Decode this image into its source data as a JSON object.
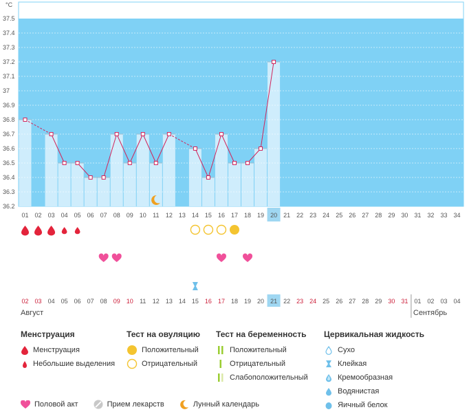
{
  "chart_data": {
    "type": "line",
    "ylabel": "°C",
    "ylim": [
      36.2,
      37.5
    ],
    "y_ticks": [
      "36.2",
      "36.3",
      "36.4",
      "36.5",
      "36.6",
      "36.7",
      "36.8",
      "36.9",
      "37",
      "37.1",
      "37.2",
      "37.3",
      "37.4",
      "37.5"
    ],
    "x_labels_top": [
      "01",
      "02",
      "03",
      "04",
      "05",
      "06",
      "07",
      "08",
      "09",
      "10",
      "11",
      "12",
      "13",
      "14",
      "15",
      "16",
      "17",
      "18",
      "19",
      "20",
      "21",
      "22",
      "23",
      "24",
      "25",
      "26",
      "27",
      "28",
      "29",
      "30",
      "31",
      "32",
      "33",
      "34"
    ],
    "highlight_day": "20",
    "temperatures": [
      36.8,
      null,
      36.7,
      36.5,
      36.5,
      36.4,
      36.4,
      36.7,
      36.5,
      36.7,
      36.5,
      36.7,
      null,
      36.6,
      36.4,
      36.7,
      36.5,
      36.5,
      36.6,
      37.2
    ],
    "moon_day": "11",
    "menstruation_large_days": [
      "01",
      "02",
      "03"
    ],
    "menstruation_small_days": [
      "04",
      "05"
    ],
    "ovulation_negative_days": [
      "14",
      "15",
      "16"
    ],
    "ovulation_positive_days": [
      "17"
    ],
    "intercourse_days": [
      "07",
      "08",
      "16",
      "18"
    ],
    "cervical_sticky_days": [
      "14"
    ],
    "dates_bottom": [
      {
        "t": "02",
        "red": true
      },
      {
        "t": "03",
        "red": true
      },
      {
        "t": "04",
        "red": false
      },
      {
        "t": "05",
        "red": false
      },
      {
        "t": "06",
        "red": false
      },
      {
        "t": "07",
        "red": false
      },
      {
        "t": "08",
        "red": false
      },
      {
        "t": "09",
        "red": true
      },
      {
        "t": "10",
        "red": true
      },
      {
        "t": "11",
        "red": false
      },
      {
        "t": "12",
        "red": false
      },
      {
        "t": "13",
        "red": false
      },
      {
        "t": "14",
        "red": false
      },
      {
        "t": "15",
        "red": false
      },
      {
        "t": "16",
        "red": true
      },
      {
        "t": "17",
        "red": true
      },
      {
        "t": "18",
        "red": false
      },
      {
        "t": "19",
        "red": false
      },
      {
        "t": "20",
        "red": false
      },
      {
        "t": "21",
        "red": false
      },
      {
        "t": "22",
        "red": false
      },
      {
        "t": "23",
        "red": true
      },
      {
        "t": "24",
        "red": true
      },
      {
        "t": "25",
        "red": false
      },
      {
        "t": "26",
        "red": false
      },
      {
        "t": "27",
        "red": false
      },
      {
        "t": "28",
        "red": false
      },
      {
        "t": "29",
        "red": false
      },
      {
        "t": "30",
        "red": true
      },
      {
        "t": "31",
        "red": true
      },
      {
        "t": "01",
        "red": false
      },
      {
        "t": "02",
        "red": false
      },
      {
        "t": "03",
        "red": false
      },
      {
        "t": "04",
        "red": false
      }
    ],
    "month_left": "Август",
    "month_right": "Сентябрь"
  },
  "legend": {
    "menstruation": {
      "title": "Менструация",
      "items": [
        "Менструация",
        "Небольшие выделения"
      ]
    },
    "ovulation": {
      "title": "Тест на овуляцию",
      "items": [
        "Положительный",
        "Отрицательный"
      ]
    },
    "pregnancy": {
      "title": "Тест на беременность",
      "items": [
        "Положительный",
        "Отрицательный",
        "Слабоположительный"
      ]
    },
    "cervical": {
      "title": "Цервикальная жидкость",
      "items": [
        "Сухо",
        "Клейкая",
        "Кремообразная",
        "Водянистая",
        "Яичный белок"
      ]
    },
    "bottom": [
      "Половой акт",
      "Прием лекарств",
      "Лунный календарь"
    ]
  },
  "colors": {
    "sky": "#7fd1f5",
    "bar": "#cfedfc",
    "line": "#d1245a",
    "blood": "#e3243b",
    "heart": "#f0509a",
    "ovulation": "#f4c430",
    "pregnancy": "#9acd32",
    "cervical": "#6fc0ea",
    "moon": "#f0a020"
  }
}
